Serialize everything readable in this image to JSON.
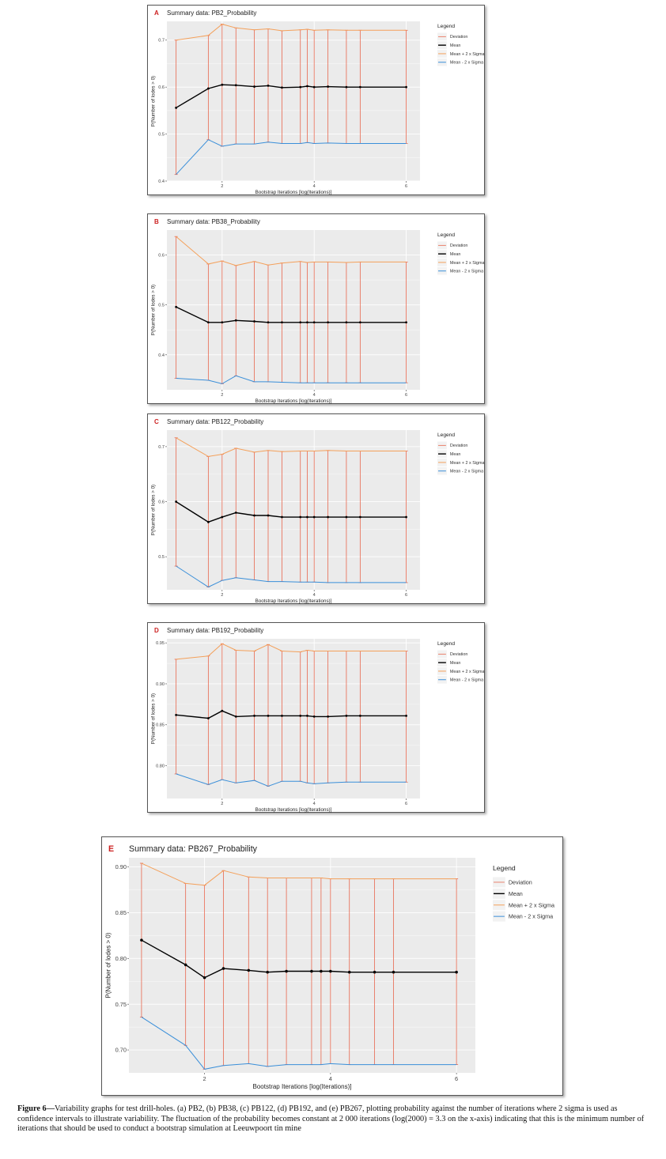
{
  "chart_data": [
    {
      "type": "line",
      "panel_letter": "A",
      "title": "Summary data: PB2_Probability",
      "xlabel": "Bootstrap Iterations [log(Iterations)]",
      "ylabel": "P(Number of lodes > 0)",
      "xlim": [
        0.8,
        6.3
      ],
      "ylim": [
        0.4,
        0.74
      ],
      "xticks": [
        2,
        4,
        6
      ],
      "yticks": [
        0.4,
        0.5,
        0.6,
        0.7
      ],
      "ytick_labels": [
        "0.4",
        "0.5",
        "0.6",
        "0.7"
      ],
      "legend_title": "Legend",
      "x": [
        1.0,
        1.7,
        2.0,
        2.3,
        2.7,
        3.0,
        3.3,
        3.7,
        3.85,
        4.0,
        4.3,
        4.7,
        5.0,
        6.0
      ],
      "series": [
        {
          "name": "Mean + 2 x Sigma",
          "values": [
            0.7,
            0.71,
            0.734,
            0.726,
            0.722,
            0.724,
            0.72,
            0.722,
            0.723,
            0.721,
            0.722,
            0.721,
            0.721,
            0.721
          ]
        },
        {
          "name": "Mean",
          "values": [
            0.556,
            0.597,
            0.605,
            0.604,
            0.601,
            0.603,
            0.599,
            0.6,
            0.602,
            0.6,
            0.601,
            0.6,
            0.6,
            0.6
          ]
        },
        {
          "name": "Mean - 2 x Sigma",
          "values": [
            0.414,
            0.488,
            0.474,
            0.479,
            0.479,
            0.483,
            0.48,
            0.48,
            0.482,
            0.48,
            0.481,
            0.48,
            0.48,
            0.48
          ]
        }
      ],
      "deviation_series_name": "Deviation"
    },
    {
      "type": "line",
      "panel_letter": "B",
      "title": "Summary data: PB38_Probability",
      "xlabel": "Bootstrap Iterations [log(Iterations)]",
      "ylabel": "P(Number of lodes > 0)",
      "xlim": [
        0.8,
        6.3
      ],
      "ylim": [
        0.33,
        0.65
      ],
      "xticks": [
        2,
        4,
        6
      ],
      "yticks": [
        0.4,
        0.5,
        0.6
      ],
      "ytick_labels": [
        "0.4",
        "0.5",
        "0.6"
      ],
      "legend_title": "Legend",
      "x": [
        1.0,
        1.7,
        2.0,
        2.3,
        2.7,
        3.0,
        3.3,
        3.7,
        3.85,
        4.0,
        4.3,
        4.7,
        5.0,
        6.0
      ],
      "series": [
        {
          "name": "Mean + 2 x Sigma",
          "values": [
            0.637,
            0.582,
            0.588,
            0.579,
            0.587,
            0.58,
            0.584,
            0.587,
            0.585,
            0.586,
            0.586,
            0.585,
            0.586,
            0.586
          ]
        },
        {
          "name": "Mean",
          "values": [
            0.496,
            0.465,
            0.465,
            0.469,
            0.467,
            0.465,
            0.465,
            0.465,
            0.465,
            0.465,
            0.465,
            0.465,
            0.465,
            0.465
          ]
        },
        {
          "name": "Mean - 2 x Sigma",
          "values": [
            0.353,
            0.349,
            0.342,
            0.358,
            0.346,
            0.346,
            0.345,
            0.344,
            0.344,
            0.344,
            0.344,
            0.344,
            0.344,
            0.344
          ]
        }
      ],
      "deviation_series_name": "Deviation"
    },
    {
      "type": "line",
      "panel_letter": "C",
      "title": "Summary data: PB122_Probability",
      "xlabel": "Bootstrap Iterations [log(Iterations)]",
      "ylabel": "P(Number of lodes > 0)",
      "xlim": [
        0.8,
        6.3
      ],
      "ylim": [
        0.44,
        0.73
      ],
      "xticks": [
        2,
        4,
        6
      ],
      "yticks": [
        0.5,
        0.6,
        0.7
      ],
      "ytick_labels": [
        "0.5",
        "0.6",
        "0.7"
      ],
      "legend_title": "Legend",
      "x": [
        1.0,
        1.7,
        2.0,
        2.3,
        2.7,
        3.0,
        3.3,
        3.7,
        3.85,
        4.0,
        4.3,
        4.7,
        5.0,
        6.0
      ],
      "series": [
        {
          "name": "Mean + 2 x Sigma",
          "values": [
            0.716,
            0.682,
            0.686,
            0.697,
            0.69,
            0.693,
            0.691,
            0.692,
            0.692,
            0.692,
            0.693,
            0.692,
            0.692,
            0.692
          ]
        },
        {
          "name": "Mean",
          "values": [
            0.6,
            0.563,
            0.572,
            0.58,
            0.575,
            0.575,
            0.572,
            0.572,
            0.572,
            0.572,
            0.572,
            0.572,
            0.572,
            0.572
          ]
        },
        {
          "name": "Mean - 2 x Sigma",
          "values": [
            0.483,
            0.445,
            0.457,
            0.462,
            0.458,
            0.455,
            0.455,
            0.454,
            0.454,
            0.454,
            0.453,
            0.453,
            0.453,
            0.453
          ]
        }
      ],
      "deviation_series_name": "Deviation"
    },
    {
      "type": "line",
      "panel_letter": "D",
      "title": "Summary data: PB192_Probability",
      "xlabel": "Bootstrap Iterations [log(Iterations)]",
      "ylabel": "P(Number of lodes > 0)",
      "xlim": [
        0.8,
        6.3
      ],
      "ylim": [
        0.76,
        0.955
      ],
      "xticks": [
        2,
        4,
        6
      ],
      "yticks": [
        0.8,
        0.85,
        0.9,
        0.95
      ],
      "ytick_labels": [
        "0.80",
        "0.85",
        "0.90",
        "0.95"
      ],
      "legend_title": "Legend",
      "x": [
        1.0,
        1.7,
        2.0,
        2.3,
        2.7,
        3.0,
        3.3,
        3.7,
        3.85,
        4.0,
        4.3,
        4.7,
        5.0,
        6.0
      ],
      "series": [
        {
          "name": "Mean + 2 x Sigma",
          "values": [
            0.93,
            0.934,
            0.949,
            0.941,
            0.94,
            0.948,
            0.94,
            0.939,
            0.941,
            0.94,
            0.94,
            0.94,
            0.94,
            0.94
          ]
        },
        {
          "name": "Mean",
          "values": [
            0.862,
            0.858,
            0.867,
            0.86,
            0.861,
            0.861,
            0.861,
            0.861,
            0.861,
            0.86,
            0.86,
            0.861,
            0.861,
            0.861
          ]
        },
        {
          "name": "Mean - 2 x Sigma",
          "values": [
            0.79,
            0.777,
            0.783,
            0.779,
            0.782,
            0.775,
            0.781,
            0.781,
            0.779,
            0.778,
            0.779,
            0.78,
            0.78,
            0.78
          ]
        }
      ],
      "deviation_series_name": "Deviation"
    },
    {
      "type": "line",
      "panel_letter": "E",
      "title": "Summary data: PB267_Probability",
      "xlabel": "Bootstrap Iterations [log(Iterations)]",
      "ylabel": "P(Number of lodes > 0)",
      "xlim": [
        0.8,
        6.3
      ],
      "ylim": [
        0.675,
        0.91
      ],
      "xticks": [
        2,
        4,
        6
      ],
      "yticks": [
        0.7,
        0.75,
        0.8,
        0.85,
        0.9
      ],
      "ytick_labels": [
        "0.70",
        "0.75",
        "0.80",
        "0.85",
        "0.90"
      ],
      "legend_title": "Legend",
      "x": [
        1.0,
        1.7,
        2.0,
        2.3,
        2.7,
        3.0,
        3.3,
        3.7,
        3.85,
        4.0,
        4.3,
        4.7,
        5.0,
        6.0
      ],
      "series": [
        {
          "name": "Mean + 2 x Sigma",
          "values": [
            0.904,
            0.882,
            0.88,
            0.896,
            0.889,
            0.888,
            0.888,
            0.888,
            0.888,
            0.887,
            0.887,
            0.887,
            0.887,
            0.887
          ]
        },
        {
          "name": "Mean",
          "values": [
            0.82,
            0.793,
            0.779,
            0.789,
            0.787,
            0.785,
            0.786,
            0.786,
            0.786,
            0.786,
            0.785,
            0.785,
            0.785,
            0.785
          ]
        },
        {
          "name": "Mean - 2 x Sigma",
          "values": [
            0.736,
            0.705,
            0.679,
            0.683,
            0.685,
            0.682,
            0.684,
            0.684,
            0.684,
            0.685,
            0.684,
            0.684,
            0.684,
            0.684
          ]
        }
      ],
      "deviation_series_name": "Deviation"
    }
  ],
  "colors": {
    "panel_bg": "#ebebeb",
    "grid": "#ffffff",
    "deviation": "#e8674e",
    "mean": "#000000",
    "upper": "#f4a05a",
    "lower": "#3a8fd9",
    "panel_letter": "#cc1f1f"
  },
  "caption": {
    "label": "Figure 6—",
    "text": "Variability graphs for test drill-holes. (a) PB2, (b) PB38, (c) PB122, (d) PB192, and (e) PB267, plotting probability against the number of iterations where 2 sigma is used as confidence intervals to illustrate variability. The fluctuation of the probability becomes constant at 2 000 iterations (log(2000) = 3.3 on the x-axis) indicating that this is the minimum number of iterations that should be used to conduct a bootstrap simulation at Leeuwpoort tin mine"
  }
}
